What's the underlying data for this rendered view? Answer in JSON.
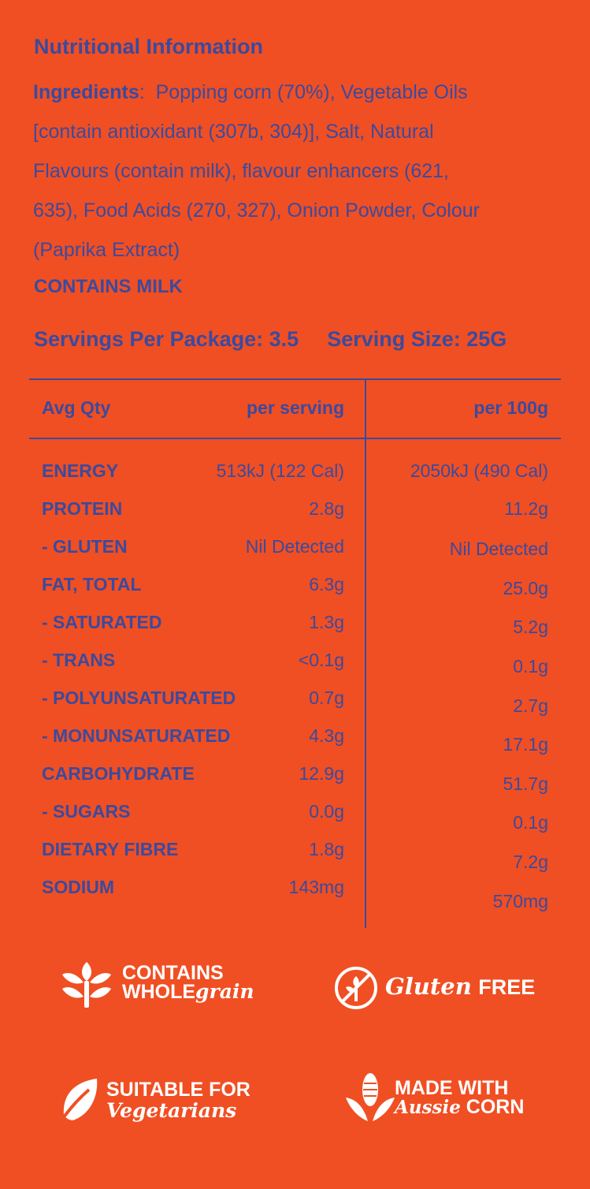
{
  "title": "Nutritional Information",
  "ingredients": {
    "label": "Ingredients",
    "separator": ":",
    "lines": [
      "Popping corn (70%), Vegetable Oils",
      "[contain antioxidant (307b, 304)], Salt, Natural",
      "Flavours (contain milk), flavour enhancers (621,",
      "635), Food Acids (270, 327), Onion Powder, Colour",
      "(Paprika Extract)"
    ]
  },
  "allergen": "CONTAINS MILK",
  "servings": {
    "per_package": "Servings Per Package: 3.5",
    "size": "Serving Size: 25G"
  },
  "table": {
    "headers": [
      "Avg Qty",
      "per serving",
      "per 100g"
    ],
    "rows": [
      {
        "name": "ENERGY",
        "per_serving": "513kJ (122 Cal)",
        "per_100g": "2050kJ (490 Cal)"
      },
      {
        "name": "PROTEIN",
        "per_serving": "2.8g",
        "per_100g": "11.2g"
      },
      {
        "name": "- GLUTEN",
        "per_serving": "Nil Detected",
        "per_100g": "Nil Detected"
      },
      {
        "name": "FAT, TOTAL",
        "per_serving": "6.3g",
        "per_100g": "25.0g"
      },
      {
        "name": "- SATURATED",
        "per_serving": "1.3g",
        "per_100g": "5.2g"
      },
      {
        "name": "- TRANS",
        "per_serving": "<0.1g",
        "per_100g": "0.1g"
      },
      {
        "name": "- POLYUNSATURATED",
        "per_serving": "0.7g",
        "per_100g": "2.7g"
      },
      {
        "name": "- MONUNSATURATED",
        "per_serving": "4.3g",
        "per_100g": "17.1g"
      },
      {
        "name": "CARBOHYDRATE",
        "per_serving": "12.9g",
        "per_100g": "51.7g"
      },
      {
        "name": "- SUGARS",
        "per_serving": "0.0g",
        "per_100g": "0.1g"
      },
      {
        "name": "DIETARY FIBRE",
        "per_serving": "1.8g",
        "per_100g": "7.2g"
      },
      {
        "name": "SODIUM",
        "per_serving": "143mg",
        "per_100g": "570mg"
      }
    ]
  },
  "badges": {
    "wholegrain": {
      "line1": "CONTAINS",
      "line2a": "WHOLE",
      "line2b": "grain",
      "icon": "wheat-sprout-icon"
    },
    "gluten": {
      "script": "Gluten",
      "bold": "FREE",
      "icon": "gluten-free-icon"
    },
    "vegetarian": {
      "line1": "SUITABLE FOR",
      "line2": "Vegetarians",
      "icon": "leaf-icon"
    },
    "corn": {
      "line1": "MADE WITH",
      "line2a": "Aussie",
      "line2b": "CORN",
      "icon": "corn-icon"
    }
  },
  "colors": {
    "background": "#f04f23",
    "text": "#3b4a9e",
    "badge": "#ffffff"
  }
}
